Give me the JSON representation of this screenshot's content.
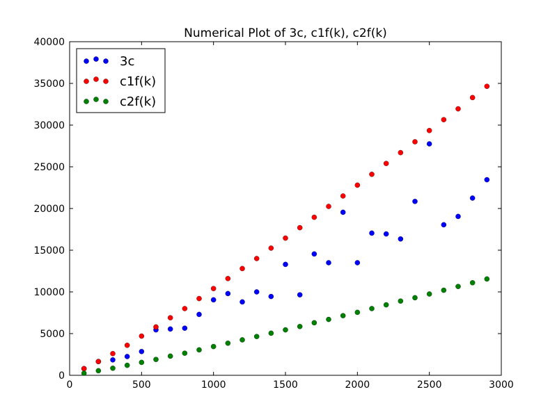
{
  "chart_data": {
    "type": "scatter",
    "title": "Numerical Plot of 3c, c1f(k), c2f(k)",
    "xlabel": "",
    "ylabel": "",
    "xlim": [
      0,
      3000
    ],
    "ylim": [
      0,
      40000
    ],
    "xticks": [
      0,
      500,
      1000,
      1500,
      2000,
      2500,
      3000
    ],
    "yticks": [
      0,
      5000,
      10000,
      15000,
      20000,
      25000,
      30000,
      35000,
      40000
    ],
    "grid": false,
    "legend_position": "top-left",
    "x": [
      100,
      200,
      300,
      400,
      500,
      600,
      700,
      800,
      900,
      1000,
      1100,
      1200,
      1300,
      1400,
      1500,
      1600,
      1700,
      1800,
      1900,
      2000,
      2100,
      2200,
      2300,
      2400,
      2500,
      2600,
      2700,
      2800,
      2900
    ],
    "series": [
      {
        "name": "3c",
        "color": "#0000ff",
        "values": [
          800,
          1650,
          1850,
          2250,
          2850,
          5450,
          5550,
          5650,
          7300,
          9050,
          9800,
          8800,
          10000,
          9450,
          13300,
          9650,
          14550,
          13500,
          19550,
          13500,
          17050,
          16950,
          16350,
          20850,
          27750,
          18050,
          19050,
          21250,
          23450
        ]
      },
      {
        "name": "c1f(k)",
        "color": "#ff0000",
        "values": [
          800,
          1650,
          2600,
          3600,
          4700,
          5800,
          6900,
          8000,
          9200,
          10400,
          11600,
          12800,
          14000,
          15250,
          16450,
          17700,
          18950,
          20250,
          21500,
          22800,
          24100,
          25400,
          26700,
          28000,
          29350,
          30650,
          31950,
          33300,
          34650
        ]
      },
      {
        "name": "c2f(k)",
        "color": "#008000",
        "values": [
          250,
          550,
          850,
          1200,
          1550,
          1900,
          2300,
          2650,
          3050,
          3450,
          3850,
          4250,
          4650,
          5050,
          5450,
          5850,
          6300,
          6700,
          7150,
          7550,
          8000,
          8450,
          8900,
          9300,
          9750,
          10200,
          10650,
          11100,
          11550
        ]
      }
    ]
  }
}
